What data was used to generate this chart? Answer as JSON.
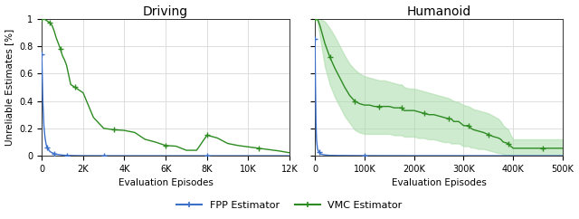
{
  "driving": {
    "title": "Driving",
    "xlabel": "Evaluation Episodes",
    "ylabel": "Unreliable Estimates [%]",
    "xlim": [
      0,
      12000
    ],
    "ylim": [
      0,
      1
    ],
    "xticks": [
      0,
      2000,
      4000,
      6000,
      8000,
      10000,
      12000
    ],
    "xticklabels": [
      "0",
      "2K",
      "4K",
      "6K",
      "8K",
      "10K",
      "12K"
    ],
    "yticks": [
      0,
      0.2,
      0.4,
      0.6,
      0.8,
      1
    ],
    "yticklabels": [
      "0",
      "0.2",
      "0.4",
      "0.6",
      "0.8",
      "1"
    ],
    "fpp_x": [
      0,
      50,
      100,
      150,
      200,
      250,
      300,
      350,
      400,
      500,
      600,
      700,
      800,
      900,
      1000,
      1200,
      1400,
      1600,
      1800,
      2000,
      3000,
      4000,
      5000,
      6000,
      7000,
      8000,
      9000,
      10000,
      11000,
      12000
    ],
    "fpp_y": [
      0.74,
      0.4,
      0.22,
      0.14,
      0.09,
      0.06,
      0.05,
      0.04,
      0.03,
      0.022,
      0.016,
      0.012,
      0.009,
      0.007,
      0.005,
      0.003,
      0.002,
      0.0015,
      0.001,
      0.0008,
      0.0003,
      0.0002,
      0.0001,
      0.0001,
      0.0001,
      0.0001,
      0.0001,
      0.0001,
      0.0001,
      0.0001
    ],
    "vmc_x": [
      0,
      50,
      100,
      200,
      300,
      400,
      500,
      600,
      700,
      800,
      900,
      1000,
      1100,
      1200,
      1400,
      1600,
      1800,
      2000,
      2500,
      3000,
      3500,
      4000,
      4500,
      5000,
      5500,
      6000,
      6500,
      7000,
      7200,
      7500,
      8000,
      8500,
      9000,
      9500,
      10000,
      10500,
      11000,
      11500,
      12000
    ],
    "vmc_y": [
      1.0,
      1.0,
      1.0,
      0.99,
      0.98,
      0.97,
      0.95,
      0.91,
      0.86,
      0.82,
      0.78,
      0.73,
      0.7,
      0.66,
      0.52,
      0.5,
      0.48,
      0.46,
      0.28,
      0.2,
      0.19,
      0.185,
      0.17,
      0.12,
      0.1,
      0.075,
      0.07,
      0.04,
      0.04,
      0.04,
      0.15,
      0.13,
      0.09,
      0.075,
      0.065,
      0.055,
      0.045,
      0.035,
      0.022
    ]
  },
  "humanoid": {
    "title": "Humanoid",
    "xlabel": "Evaluation Episodes",
    "xlim": [
      0,
      500000
    ],
    "ylim": [
      0,
      1
    ],
    "xticks": [
      0,
      100000,
      200000,
      300000,
      400000,
      500000
    ],
    "xticklabels": [
      "0",
      "100K",
      "200K",
      "300K",
      "400K",
      "500K"
    ],
    "yticks": [
      0,
      0.2,
      0.4,
      0.6,
      0.8,
      1
    ],
    "fpp_x": [
      0,
      1000,
      2000,
      3000,
      5000,
      8000,
      12000,
      20000,
      30000,
      50000,
      100000,
      200000,
      500000
    ],
    "fpp_y": [
      0.85,
      0.5,
      0.25,
      0.12,
      0.05,
      0.025,
      0.012,
      0.006,
      0.003,
      0.002,
      0.001,
      0.0005,
      0.0003
    ],
    "vmc_x": [
      0,
      2000,
      5000,
      10000,
      20000,
      30000,
      40000,
      50000,
      60000,
      70000,
      80000,
      90000,
      100000,
      110000,
      120000,
      130000,
      140000,
      150000,
      160000,
      170000,
      175000,
      180000,
      190000,
      200000,
      210000,
      220000,
      230000,
      240000,
      250000,
      260000,
      270000,
      275000,
      280000,
      290000,
      300000,
      310000,
      315000,
      320000,
      330000,
      340000,
      350000,
      360000,
      370000,
      375000,
      380000,
      390000,
      395000,
      400000,
      420000,
      440000,
      460000,
      480000,
      500000
    ],
    "vmc_y": [
      1.0,
      1.0,
      1.0,
      0.95,
      0.82,
      0.72,
      0.64,
      0.57,
      0.5,
      0.44,
      0.4,
      0.38,
      0.37,
      0.37,
      0.36,
      0.36,
      0.36,
      0.36,
      0.35,
      0.35,
      0.35,
      0.33,
      0.33,
      0.33,
      0.32,
      0.31,
      0.3,
      0.3,
      0.29,
      0.28,
      0.27,
      0.27,
      0.25,
      0.25,
      0.22,
      0.22,
      0.2,
      0.19,
      0.18,
      0.17,
      0.155,
      0.14,
      0.13,
      0.12,
      0.1,
      0.09,
      0.07,
      0.055,
      0.055,
      0.055,
      0.055,
      0.055,
      0.055
    ],
    "vmc_upper": [
      1.0,
      1.0,
      1.0,
      1.0,
      0.98,
      0.93,
      0.87,
      0.8,
      0.73,
      0.67,
      0.63,
      0.6,
      0.58,
      0.57,
      0.56,
      0.55,
      0.55,
      0.54,
      0.53,
      0.52,
      0.52,
      0.5,
      0.49,
      0.49,
      0.48,
      0.47,
      0.46,
      0.45,
      0.44,
      0.43,
      0.42,
      0.41,
      0.4,
      0.39,
      0.37,
      0.36,
      0.35,
      0.34,
      0.33,
      0.32,
      0.31,
      0.29,
      0.27,
      0.25,
      0.22,
      0.19,
      0.15,
      0.12,
      0.12,
      0.12,
      0.12,
      0.12,
      0.12
    ],
    "vmc_lower": [
      1.0,
      1.0,
      0.98,
      0.87,
      0.65,
      0.52,
      0.43,
      0.36,
      0.29,
      0.24,
      0.19,
      0.17,
      0.16,
      0.16,
      0.16,
      0.16,
      0.16,
      0.16,
      0.15,
      0.15,
      0.15,
      0.14,
      0.14,
      0.14,
      0.13,
      0.13,
      0.12,
      0.12,
      0.11,
      0.1,
      0.1,
      0.09,
      0.09,
      0.09,
      0.07,
      0.07,
      0.06,
      0.06,
      0.05,
      0.05,
      0.04,
      0.03,
      0.02,
      0.02,
      0.01,
      0.005,
      0.003,
      0.0,
      0.0,
      0.0,
      0.0,
      0.0,
      0.0
    ]
  },
  "fpp_color": "#3a6fca",
  "vmc_color": "#2d8b22",
  "vmc_fill_color": "#a8dba8",
  "fpp_label": "FPP Estimator",
  "vmc_label": "VMC Estimator",
  "bg_color": "#ffffff",
  "grid_color": "#d8d8d8"
}
